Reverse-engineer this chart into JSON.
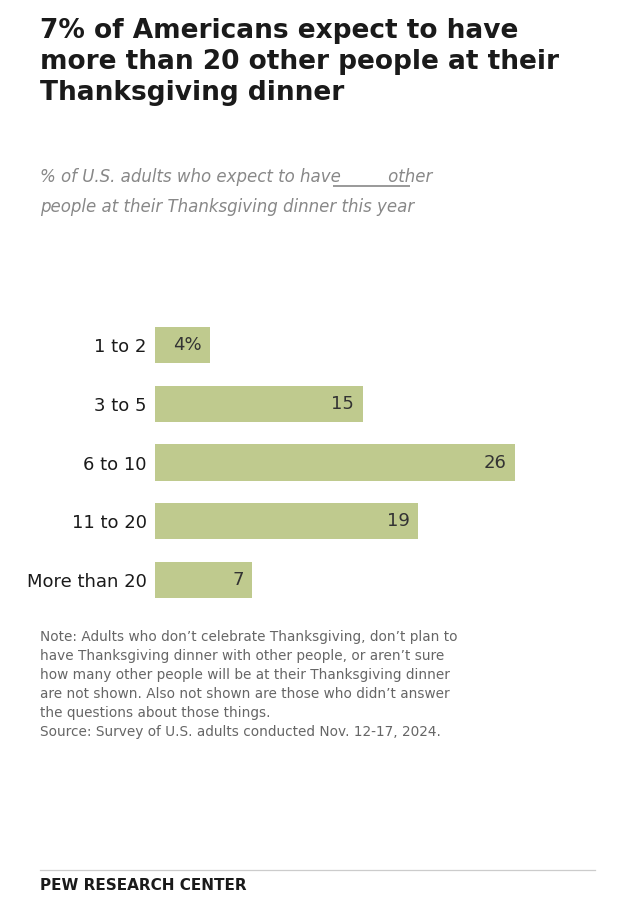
{
  "title": "7% of Americans expect to have\nmore than 20 other people at their\nThanksgiving dinner",
  "subtitle_part1": "% of U.S. adults who expect to have",
  "subtitle_blank": "___",
  "subtitle_part2": "other",
  "subtitle_line2": "people at their Thanksgiving dinner this year",
  "categories": [
    "1 to 2",
    "3 to 5",
    "6 to 10",
    "11 to 20",
    "More than 20"
  ],
  "values": [
    4,
    15,
    26,
    19,
    7
  ],
  "bar_color": "#bfca8e",
  "value_labels": [
    "4%",
    "15",
    "26",
    "19",
    "7"
  ],
  "note_text": "Note: Adults who don’t celebrate Thanksgiving, don’t plan to\nhave Thanksgiving dinner with other people, or aren’t sure\nhow many other people will be at their Thanksgiving dinner\nare not shown. Also not shown are those who didn’t answer\nthe questions about those things.\nSource: Survey of U.S. adults conducted Nov. 12-17, 2024.",
  "source_label": "PEW RESEARCH CENTER",
  "background_color": "#ffffff",
  "title_color": "#1a1a1a",
  "subtitle_color": "#888888",
  "bar_label_color": "#333333",
  "note_color": "#666666",
  "pew_color": "#1a1a1a",
  "xlim": [
    0,
    30
  ],
  "bar_height": 0.62,
  "title_fontsize": 19,
  "subtitle_fontsize": 12,
  "bar_label_fontsize": 13,
  "ytick_fontsize": 13,
  "note_fontsize": 9.8,
  "pew_fontsize": 11
}
